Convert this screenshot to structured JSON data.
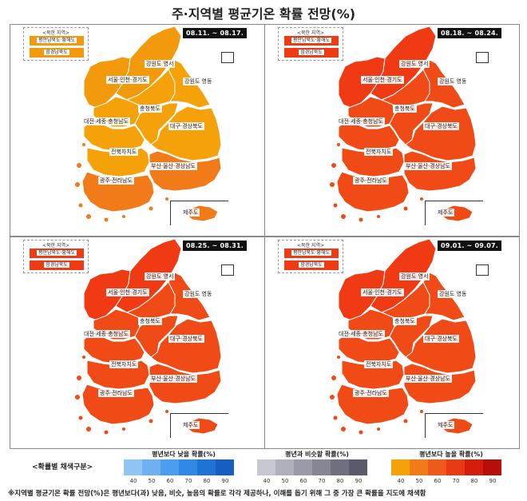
{
  "title": "주·지역별 평균기온 확률 전망(%)",
  "north_korea_box": {
    "title": "<북한 지역>",
    "items": [
      "평안남북도·황해도",
      "함경남북도"
    ]
  },
  "region_labels": {
    "gangwon_yeongseo": "강원도 영서",
    "seoul_incheon_gyeonggi": "서울·인천·경기도",
    "gangwon_yeongdong": "강원도 영동",
    "chungbuk": "충청북도",
    "daejeon_sejong_chungnam": "대전·세종·충청남도",
    "daegu_gyeongbuk": "대구·경상북도",
    "jeonbuk": "전북자치도",
    "busan_ulsan_gyeongnam": "부산·울산·경상남도",
    "gwangju_jeonnam": "광주·전라남도",
    "jeju": "제주도"
  },
  "panels": [
    {
      "period": "08.11. ~ 08.17.",
      "colors": {
        "north1": "#f29a0c",
        "north2": "#f29a0c",
        "gangwon_yeongseo": "#f5a20a",
        "seoul_incheon_gyeonggi": "#f5a20a",
        "gangwon_yeongdong": "#f5a20a",
        "chungbuk": "#f5a20a",
        "daejeon_sejong_chungnam": "#f5a20a",
        "daegu_gyeongbuk": "#f5a20a",
        "jeonbuk": "#f5a20a",
        "busan_ulsan_gyeongnam": "#f07b18",
        "gwangju_jeonnam": "#f07b18",
        "jeju": "#f07b18"
      }
    },
    {
      "period": "08.18. ~ 08.24.",
      "colors": {
        "north1": "#ef3a14",
        "north2": "#ef3a14",
        "gangwon_yeongseo": "#f04a16",
        "seoul_incheon_gyeonggi": "#f04a16",
        "gangwon_yeongdong": "#f04a16",
        "chungbuk": "#f04a16",
        "daejeon_sejong_chungnam": "#f04a16",
        "daegu_gyeongbuk": "#f04a16",
        "jeonbuk": "#f04a16",
        "busan_ulsan_gyeongnam": "#f04a16",
        "gwangju_jeonnam": "#f04a16",
        "jeju": "#f04a16"
      }
    },
    {
      "period": "08.25. ~ 08.31.",
      "colors": {
        "north1": "#ef3a14",
        "north2": "#ef3a14",
        "gangwon_yeongseo": "#f04a16",
        "seoul_incheon_gyeonggi": "#f04a16",
        "gangwon_yeongdong": "#f04a16",
        "chungbuk": "#f04a16",
        "daejeon_sejong_chungnam": "#f04a16",
        "daegu_gyeongbuk": "#f04a16",
        "jeonbuk": "#f04a16",
        "busan_ulsan_gyeongnam": "#f04a16",
        "gwangju_jeonnam": "#f04a16",
        "jeju": "#f04a16"
      }
    },
    {
      "period": "09.01. ~ 09.07.",
      "colors": {
        "north1": "#ef3a14",
        "north2": "#ef3a14",
        "gangwon_yeongseo": "#f04a16",
        "seoul_incheon_gyeonggi": "#f04a16",
        "gangwon_yeongdong": "#f04a16",
        "chungbuk": "#f04a16",
        "daejeon_sejong_chungnam": "#f04a16",
        "daegu_gyeongbuk": "#f04a16",
        "jeonbuk": "#f04a16",
        "busan_ulsan_gyeongnam": "#f04a16",
        "gwangju_jeonnam": "#f04a16",
        "jeju": "#f04a16"
      }
    }
  ],
  "legend": {
    "caption": "<확률별 채색구분>",
    "groups": [
      {
        "title": "평년보다 낮을 확률(%)",
        "colors": [
          "#8fc4f5",
          "#6db1f2",
          "#4a9def",
          "#3288e6",
          "#1f72d6",
          "#155fc2"
        ]
      },
      {
        "title": "평년과 비슷할 확률(%)",
        "colors": [
          "#c7c7d1",
          "#b0b0bc",
          "#9a9aa8",
          "#858594",
          "#6f6f80",
          "#5a5a6c"
        ]
      },
      {
        "title": "평년보다 높을 확률(%)",
        "colors": [
          "#f5a20a",
          "#f07b18",
          "#ef5a1a",
          "#e93a12",
          "#d61d0c",
          "#b50f08"
        ]
      }
    ],
    "ticks": [
      "40",
      "50",
      "60",
      "70",
      "80",
      "90"
    ]
  },
  "note": "※지역별 평균기온 확률 전망(%)은 평년보다(과) 낮음, 비슷, 높음의 확률로 각각 제공하나, 이해를 돕기 위해 그 중 가장 큰 확률을 지도에 채색함"
}
